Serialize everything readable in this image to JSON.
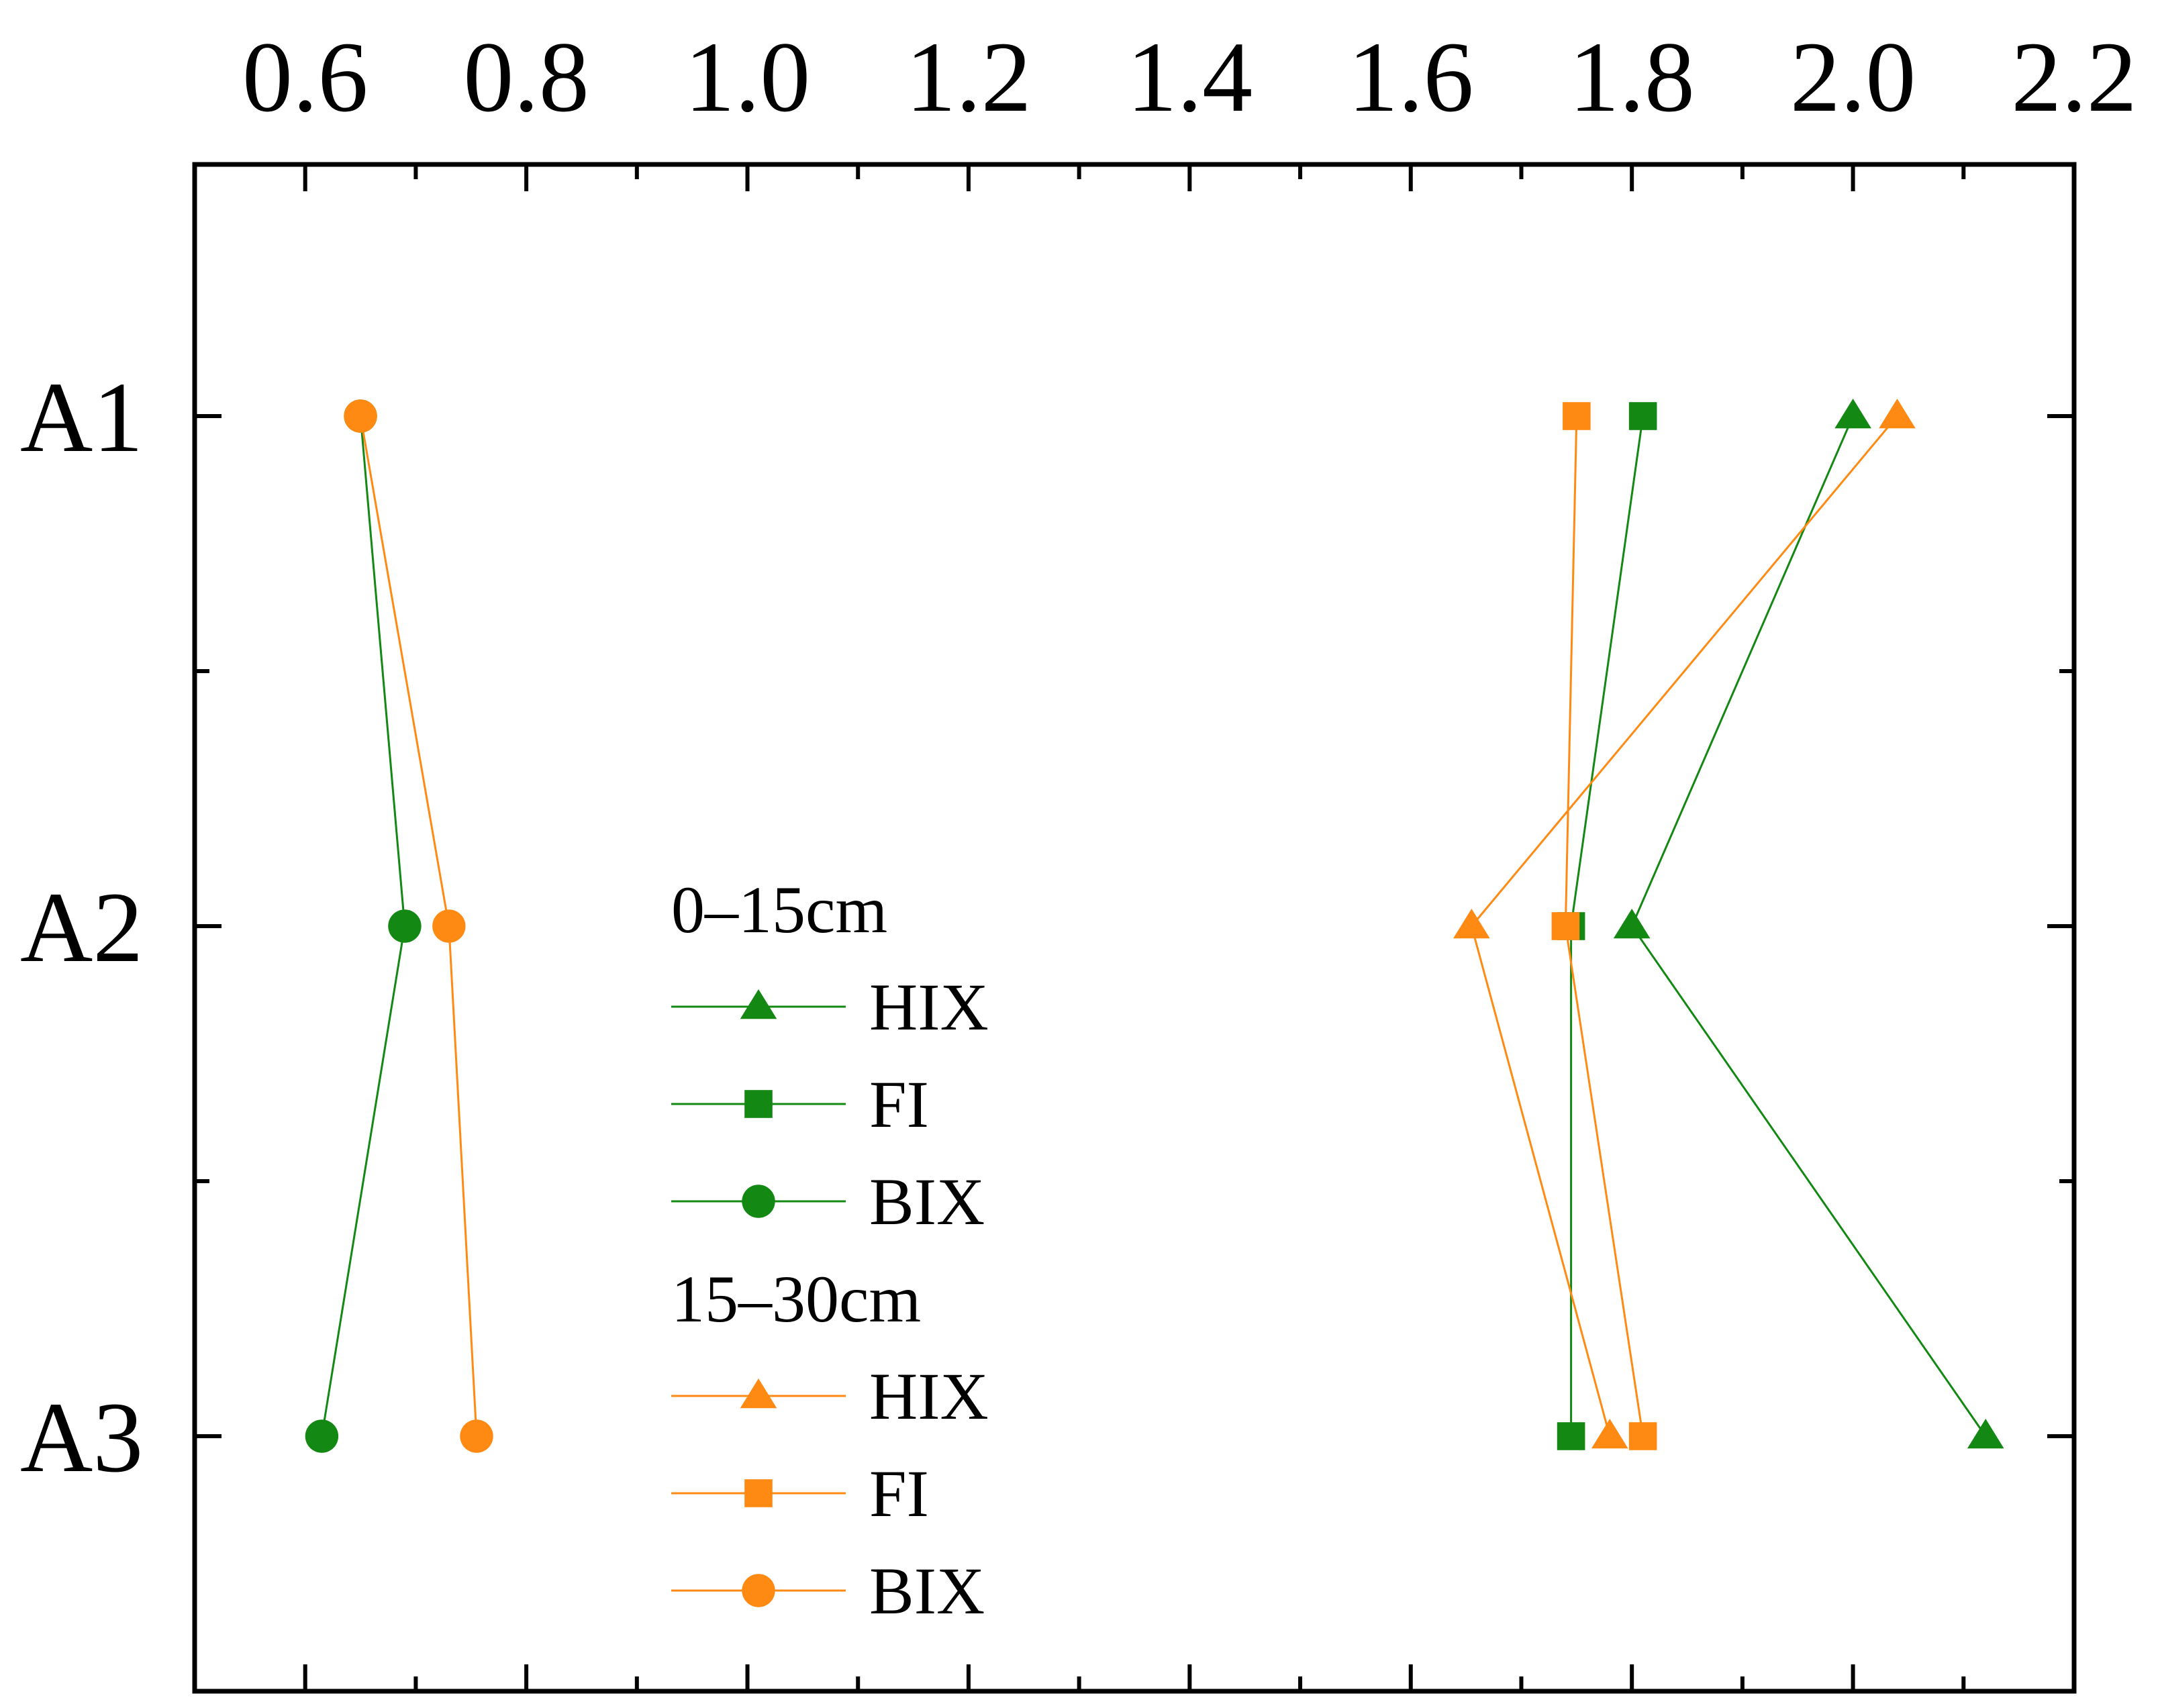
{
  "chart_data": {
    "type": "line",
    "orientation": "horizontal-values",
    "categories": [
      "A1",
      "A2",
      "A3"
    ],
    "xlim": [
      0.5,
      2.2
    ],
    "xticks": [
      0.6,
      0.8,
      1.0,
      1.2,
      1.4,
      1.6,
      1.8,
      2.0,
      2.2
    ],
    "xtick_labels": [
      "0.6",
      "0.8",
      "1.0",
      "1.2",
      "1.4",
      "1.6",
      "1.8",
      "2.0",
      "2.2"
    ],
    "x_axis_position": "top",
    "y_axis_position": "left",
    "grid": false,
    "legend_placement": "center-left",
    "colors": {
      "depth_0_15": "#138813",
      "depth_15_30": "#ff8a13"
    },
    "groups": [
      {
        "name": "0–15cm",
        "color": "#138813",
        "series": [
          {
            "name": "HIX",
            "marker": "triangle",
            "values": [
              2.0,
              1.8,
              2.12
            ]
          },
          {
            "name": "FI",
            "marker": "square",
            "values": [
              1.81,
              1.745,
              1.745
            ]
          },
          {
            "name": "BIX",
            "marker": "circle",
            "values": [
              0.65,
              0.69,
              0.615
            ]
          }
        ]
      },
      {
        "name": "15–30cm",
        "color": "#ff8a13",
        "series": [
          {
            "name": "HIX",
            "marker": "triangle",
            "values": [
              2.04,
              1.655,
              1.78
            ]
          },
          {
            "name": "FI",
            "marker": "square",
            "values": [
              1.75,
              1.74,
              1.81
            ]
          },
          {
            "name": "BIX",
            "marker": "circle",
            "values": [
              0.65,
              0.73,
              0.755
            ]
          }
        ]
      }
    ]
  }
}
